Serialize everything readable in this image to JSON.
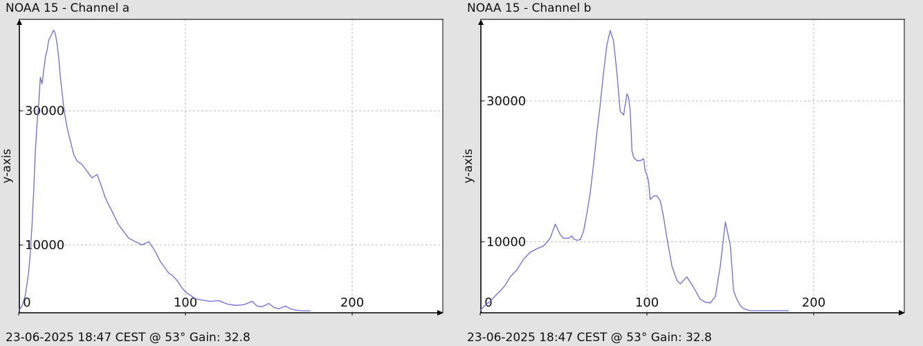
{
  "panels": [
    {
      "title": "NOAA 15 - Channel a",
      "footer": "23-06-2025 18:47 CEST @ 53° Gain: 32.8"
    },
    {
      "title": "NOAA 15 - Channel b",
      "footer": "23-06-2025 18:47 CEST @ 53° Gain: 32.8"
    }
  ],
  "chart_data": [
    {
      "type": "line",
      "title": "NOAA 15 - Channel a",
      "xlabel": "",
      "ylabel": "y-axis",
      "xlim": [
        0,
        250
      ],
      "ylim": [
        -100,
        43000
      ],
      "xticks": [
        0,
        100,
        200
      ],
      "yticks": [
        10000,
        30000
      ],
      "xtick_labels": [
        "0",
        "100",
        "200"
      ],
      "ytick_labels": [
        "10000",
        "30000"
      ],
      "grid": true,
      "line_color": "#6a6adf",
      "series": [
        {
          "x": [
            0,
            2,
            4,
            6,
            7,
            8,
            9,
            10,
            11,
            12,
            13,
            14,
            15,
            16,
            17,
            18,
            19,
            20,
            21,
            22,
            23,
            24,
            25,
            27,
            29,
            31,
            33,
            35,
            38,
            41,
            44,
            47,
            50,
            52,
            55,
            57,
            60,
            63,
            66,
            70,
            74,
            78,
            82,
            85,
            88,
            90,
            92,
            95,
            98,
            100,
            103,
            106,
            110,
            115,
            120,
            125,
            130,
            135,
            140,
            143,
            146,
            150,
            153,
            156,
            160,
            163,
            166,
            170,
            175
          ],
          "y": [
            200,
            900,
            2500,
            6000,
            9000,
            13000,
            18000,
            24000,
            28000,
            31000,
            35000,
            34000,
            36000,
            38000,
            39000,
            40500,
            41000,
            41500,
            42000,
            41500,
            40000,
            38000,
            35000,
            30500,
            27500,
            25500,
            23500,
            22500,
            22000,
            21000,
            20000,
            20500,
            18500,
            17000,
            15500,
            14500,
            13000,
            12000,
            11000,
            10500,
            10000,
            10500,
            9000,
            7500,
            6500,
            5800,
            5500,
            4700,
            3600,
            3000,
            2500,
            2000,
            1800,
            1600,
            1700,
            1200,
            1000,
            1100,
            1600,
            900,
            800,
            1300,
            700,
            500,
            900,
            500,
            300,
            200,
            200
          ]
        }
      ]
    },
    {
      "type": "line",
      "title": "NOAA 15 - Channel b",
      "xlabel": "",
      "ylabel": "y-axis",
      "xlim": [
        0,
        250
      ],
      "ylim": [
        -100,
        41000
      ],
      "xticks": [
        0,
        100,
        200
      ],
      "yticks": [
        10000,
        30000
      ],
      "xtick_labels": [
        "0",
        "100",
        "200"
      ],
      "ytick_labels": [
        "10000",
        "30000"
      ],
      "grid": true,
      "line_color": "#6a6adf",
      "series": [
        {
          "x": [
            0,
            3,
            6,
            9,
            12,
            15,
            18,
            22,
            26,
            30,
            34,
            38,
            42,
            45,
            48,
            50,
            53,
            55,
            56,
            58,
            60,
            62,
            64,
            66,
            68,
            70,
            72,
            74,
            76,
            78,
            80,
            82,
            84,
            86,
            88,
            89,
            90,
            91,
            92,
            94,
            96,
            98,
            99,
            100,
            101,
            102,
            104,
            106,
            108,
            110,
            112,
            115,
            118,
            120,
            124,
            128,
            132,
            135,
            138,
            141,
            144,
            147,
            150,
            152,
            154,
            156,
            158,
            160,
            162,
            164,
            166,
            167,
            168,
            170,
            172,
            175,
            180,
            185
          ],
          "y": [
            200,
            1000,
            1500,
            2300,
            3000,
            3800,
            5000,
            6000,
            7500,
            8500,
            9000,
            9400,
            10500,
            12500,
            11000,
            10500,
            10500,
            10800,
            10400,
            10200,
            10300,
            11500,
            14000,
            17000,
            21000,
            25500,
            29500,
            34000,
            38000,
            40000,
            38500,
            34000,
            28500,
            28000,
            31000,
            30500,
            28500,
            23000,
            22000,
            21500,
            21500,
            21800,
            20000,
            19500,
            18500,
            16000,
            16500,
            16500,
            15800,
            13500,
            10500,
            6500,
            4500,
            4000,
            5000,
            3500,
            1800,
            1400,
            1300,
            2200,
            6500,
            12800,
            9500,
            3000,
            1800,
            900,
            500,
            300,
            200,
            200,
            200,
            200,
            200,
            200,
            200,
            200,
            200,
            200
          ]
        }
      ]
    }
  ]
}
